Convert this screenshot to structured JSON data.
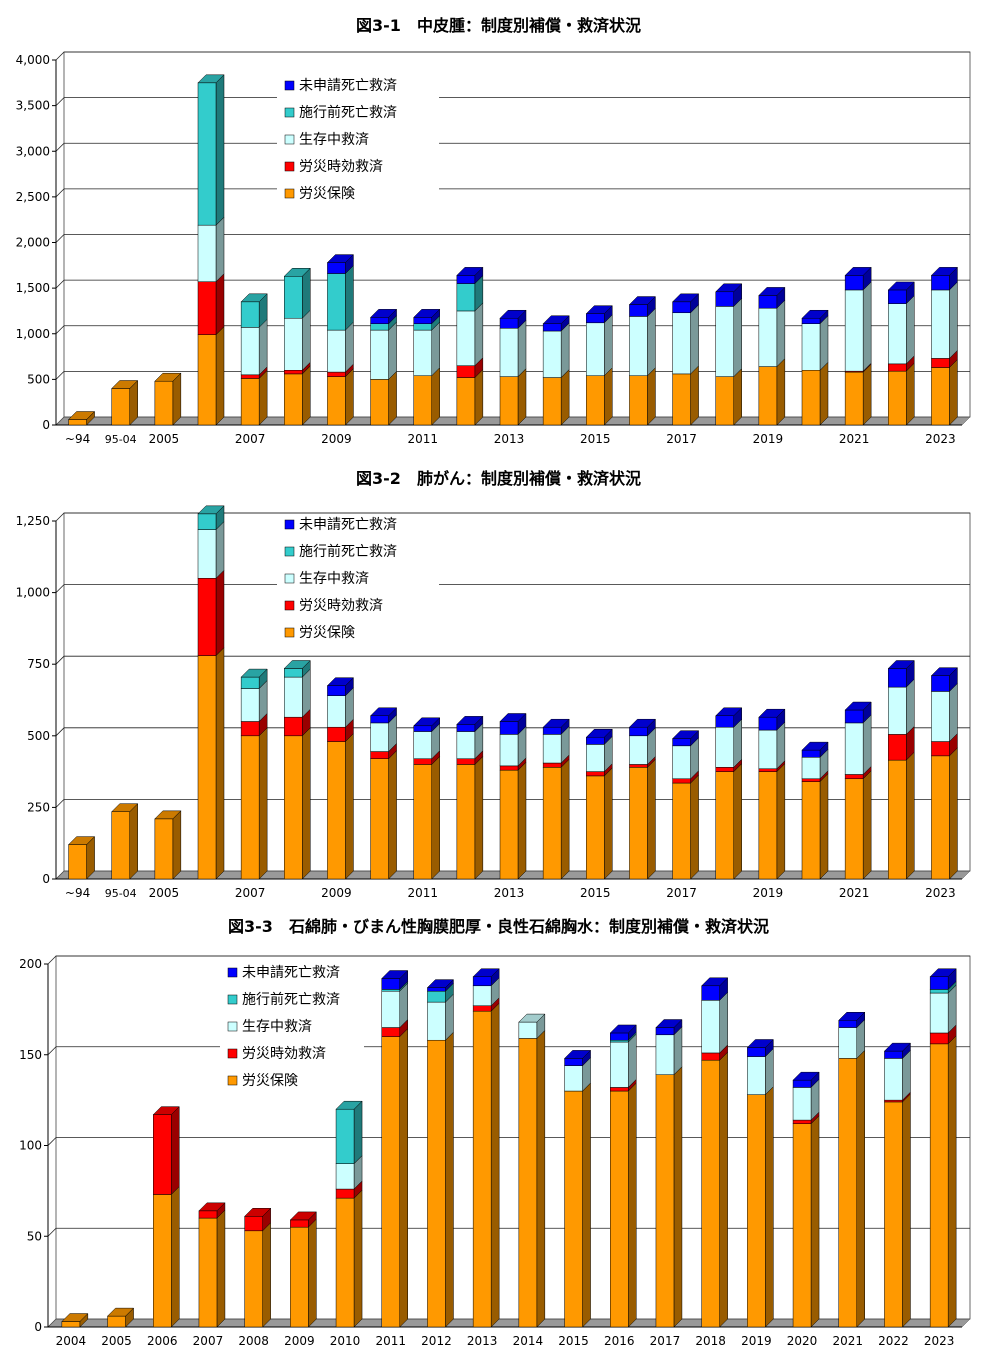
{
  "chart_data": [
    {
      "type": "bar",
      "stacked": true,
      "title": "図3-1　中皮腫：制度別補償・救済状況",
      "ylim": [
        0,
        4000
      ],
      "yticks": [
        0,
        500,
        1000,
        1500,
        2000,
        2500,
        3000,
        3500,
        4000
      ],
      "ytick_labels": [
        "0",
        "500",
        "1,000",
        "1,500",
        "2,000",
        "2,500",
        "3,000",
        "3,500",
        "4,000"
      ],
      "grid": true,
      "legend_position": "top-left",
      "legend": [
        "未申請死亡救済",
        "施行前死亡救済",
        "生存中救済",
        "労災時効救済",
        "労災保険"
      ],
      "categories": [
        "-94",
        "95-04",
        "2005",
        "2006",
        "2007",
        "2008",
        "2009",
        "2010",
        "2011",
        "2012",
        "2013",
        "2014",
        "2015",
        "2016",
        "2017",
        "2018",
        "2019",
        "2020",
        "2021",
        "2022",
        "2023"
      ],
      "category_labels": [
        "~94",
        "95-04",
        "2005",
        "",
        "2007",
        "",
        "2009",
        "",
        "2011",
        "",
        "2013",
        "",
        "2015",
        "",
        "2017",
        "",
        "2019",
        "",
        "2021",
        "",
        "2023"
      ],
      "series": [
        {
          "name": "労災保険",
          "color": "#ff9900",
          "values": [
            60,
            400,
            480,
            990,
            510,
            560,
            530,
            500,
            540,
            520,
            530,
            520,
            540,
            540,
            560,
            530,
            640,
            600,
            580,
            590,
            630
          ]
        },
        {
          "name": "労災時効救済",
          "color": "#ff0000",
          "values": [
            0,
            0,
            0,
            580,
            40,
            40,
            50,
            0,
            0,
            130,
            0,
            0,
            0,
            0,
            0,
            0,
            0,
            0,
            10,
            80,
            100
          ]
        },
        {
          "name": "生存中救済",
          "color": "#ccffff",
          "values": [
            0,
            0,
            0,
            620,
            520,
            570,
            460,
            540,
            500,
            600,
            530,
            510,
            580,
            650,
            670,
            770,
            640,
            510,
            890,
            660,
            750
          ]
        },
        {
          "name": "施行前死亡救済",
          "color": "#33cccc",
          "values": [
            0,
            0,
            0,
            1560,
            280,
            460,
            620,
            70,
            70,
            300,
            0,
            0,
            0,
            0,
            0,
            0,
            0,
            0,
            0,
            0,
            0
          ]
        },
        {
          "name": "未申請死亡救済",
          "color": "#0000ff",
          "values": [
            0,
            0,
            0,
            0,
            0,
            0,
            120,
            70,
            70,
            90,
            110,
            80,
            100,
            130,
            120,
            160,
            140,
            60,
            160,
            150,
            160
          ]
        }
      ]
    },
    {
      "type": "bar",
      "stacked": true,
      "title": "図3-2　肺がん：制度別補償・救済状況",
      "ylim": [
        0,
        1250
      ],
      "yticks": [
        0,
        250,
        500,
        750,
        1000,
        1250
      ],
      "ytick_labels": [
        "0",
        "250",
        "500",
        "750",
        "1,000",
        "1,250"
      ],
      "grid": true,
      "legend_position": "top-left",
      "legend": [
        "未申請死亡救済",
        "施行前死亡救済",
        "生存中救済",
        "労災時効救済",
        "労災保険"
      ],
      "categories": [
        "-94",
        "95-04",
        "2005",
        "2006",
        "2007",
        "2008",
        "2009",
        "2010",
        "2011",
        "2012",
        "2013",
        "2014",
        "2015",
        "2016",
        "2017",
        "2018",
        "2019",
        "2020",
        "2021",
        "2022",
        "2023"
      ],
      "category_labels": [
        "~94",
        "95-04",
        "2005",
        "",
        "2007",
        "",
        "2009",
        "",
        "2011",
        "",
        "2013",
        "",
        "2015",
        "",
        "2017",
        "",
        "2019",
        "",
        "2021",
        "",
        "2023"
      ],
      "series": [
        {
          "name": "労災保険",
          "color": "#ff9900",
          "values": [
            120,
            235,
            210,
            780,
            500,
            500,
            480,
            420,
            400,
            400,
            380,
            390,
            360,
            390,
            335,
            375,
            375,
            340,
            350,
            415,
            430
          ]
        },
        {
          "name": "労災時効救済",
          "color": "#ff0000",
          "values": [
            0,
            0,
            0,
            270,
            50,
            65,
            50,
            25,
            20,
            20,
            15,
            15,
            15,
            10,
            15,
            15,
            10,
            10,
            15,
            90,
            50
          ]
        },
        {
          "name": "生存中救済",
          "color": "#ccffff",
          "values": [
            0,
            0,
            0,
            170,
            115,
            140,
            110,
            100,
            95,
            95,
            110,
            100,
            95,
            100,
            115,
            140,
            135,
            75,
            180,
            165,
            175
          ]
        },
        {
          "name": "施行前死亡救済",
          "color": "#33cccc",
          "values": [
            0,
            0,
            0,
            55,
            40,
            30,
            0,
            0,
            0,
            0,
            0,
            0,
            0,
            0,
            0,
            0,
            0,
            0,
            0,
            0,
            0
          ]
        },
        {
          "name": "未申請死亡救済",
          "color": "#0000ff",
          "values": [
            0,
            0,
            0,
            0,
            0,
            0,
            35,
            25,
            20,
            25,
            45,
            25,
            25,
            30,
            25,
            40,
            45,
            25,
            45,
            65,
            55
          ]
        }
      ]
    },
    {
      "type": "bar",
      "stacked": true,
      "title": "図3-3　石綿肺・びまん性胸膜肥厚・良性石綿胸水：制度別補償・救済状況",
      "ylim": [
        0,
        200
      ],
      "yticks": [
        0,
        50,
        100,
        150,
        200
      ],
      "ytick_labels": [
        "0",
        "50",
        "100",
        "150",
        "200"
      ],
      "grid": true,
      "legend_position": "top-left",
      "legend": [
        "未申請死亡救済",
        "施行前死亡救済",
        "生存中救済",
        "労災時効救済",
        "労災保険"
      ],
      "categories": [
        "2004",
        "2005",
        "2006",
        "2007",
        "2008",
        "2009",
        "2010",
        "2011",
        "2012",
        "2013",
        "2014",
        "2015",
        "2016",
        "2017",
        "2018",
        "2019",
        "2020",
        "2021",
        "2022",
        "2023"
      ],
      "category_labels": [
        "2004",
        "2005",
        "2006",
        "2007",
        "2008",
        "2009",
        "2010",
        "2011",
        "2012",
        "2013",
        "2014",
        "2015",
        "2016",
        "2017",
        "2018",
        "2019",
        "2020",
        "2021",
        "2022",
        "2023"
      ],
      "series": [
        {
          "name": "労災保険",
          "color": "#ff9900",
          "values": [
            3,
            6,
            73,
            60,
            53,
            55,
            71,
            160,
            158,
            174,
            159,
            130,
            130,
            139,
            147,
            128,
            112,
            148,
            124,
            156
          ]
        },
        {
          "name": "労災時効救済",
          "color": "#ff0000",
          "values": [
            0,
            0,
            44,
            4,
            8,
            4,
            5,
            5,
            0,
            3,
            0,
            0,
            2,
            0,
            4,
            0,
            2,
            0,
            1,
            6
          ]
        },
        {
          "name": "生存中救済",
          "color": "#ccffff",
          "values": [
            0,
            0,
            0,
            0,
            0,
            0,
            14,
            20,
            21,
            11,
            9,
            14,
            25,
            22,
            29,
            21,
            18,
            17,
            23,
            22
          ]
        },
        {
          "name": "施行前死亡救済",
          "color": "#33cccc",
          "values": [
            0,
            0,
            0,
            0,
            0,
            0,
            30,
            1,
            6,
            0,
            0,
            0,
            1,
            0,
            0,
            0,
            0,
            0,
            0,
            2
          ]
        },
        {
          "name": "未申請死亡救済",
          "color": "#0000ff",
          "values": [
            0,
            0,
            0,
            0,
            0,
            0,
            0,
            6,
            2,
            5,
            0,
            4,
            4,
            4,
            8,
            5,
            4,
            4,
            4,
            7
          ]
        }
      ]
    }
  ]
}
